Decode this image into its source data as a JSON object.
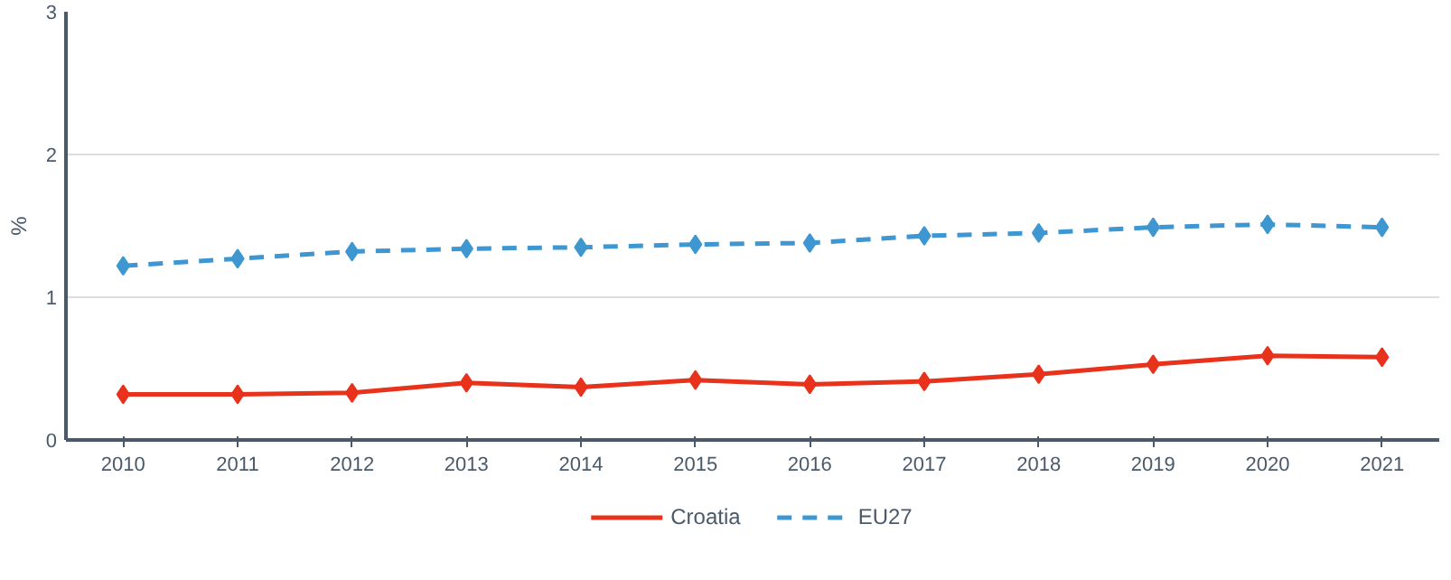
{
  "chart_data": {
    "type": "line",
    "ylabel": "%",
    "categories": [
      "2010",
      "2011",
      "2012",
      "2013",
      "2014",
      "2015",
      "2016",
      "2017",
      "2018",
      "2019",
      "2020",
      "2021"
    ],
    "series": [
      {
        "name": "Croatia",
        "color": "#e8321b",
        "line_style": "solid",
        "values": [
          0.32,
          0.32,
          0.33,
          0.4,
          0.37,
          0.42,
          0.39,
          0.41,
          0.46,
          0.53,
          0.59,
          0.58
        ]
      },
      {
        "name": "EU27",
        "color": "#3e97d1",
        "line_style": "dashed",
        "values": [
          1.22,
          1.27,
          1.32,
          1.34,
          1.35,
          1.37,
          1.38,
          1.43,
          1.45,
          1.49,
          1.51,
          1.49
        ]
      }
    ],
    "ylim": [
      0,
      3
    ],
    "yticks": [
      0,
      1,
      2,
      3
    ],
    "grid": "y",
    "legend": "bottom",
    "marker": "diamond"
  }
}
